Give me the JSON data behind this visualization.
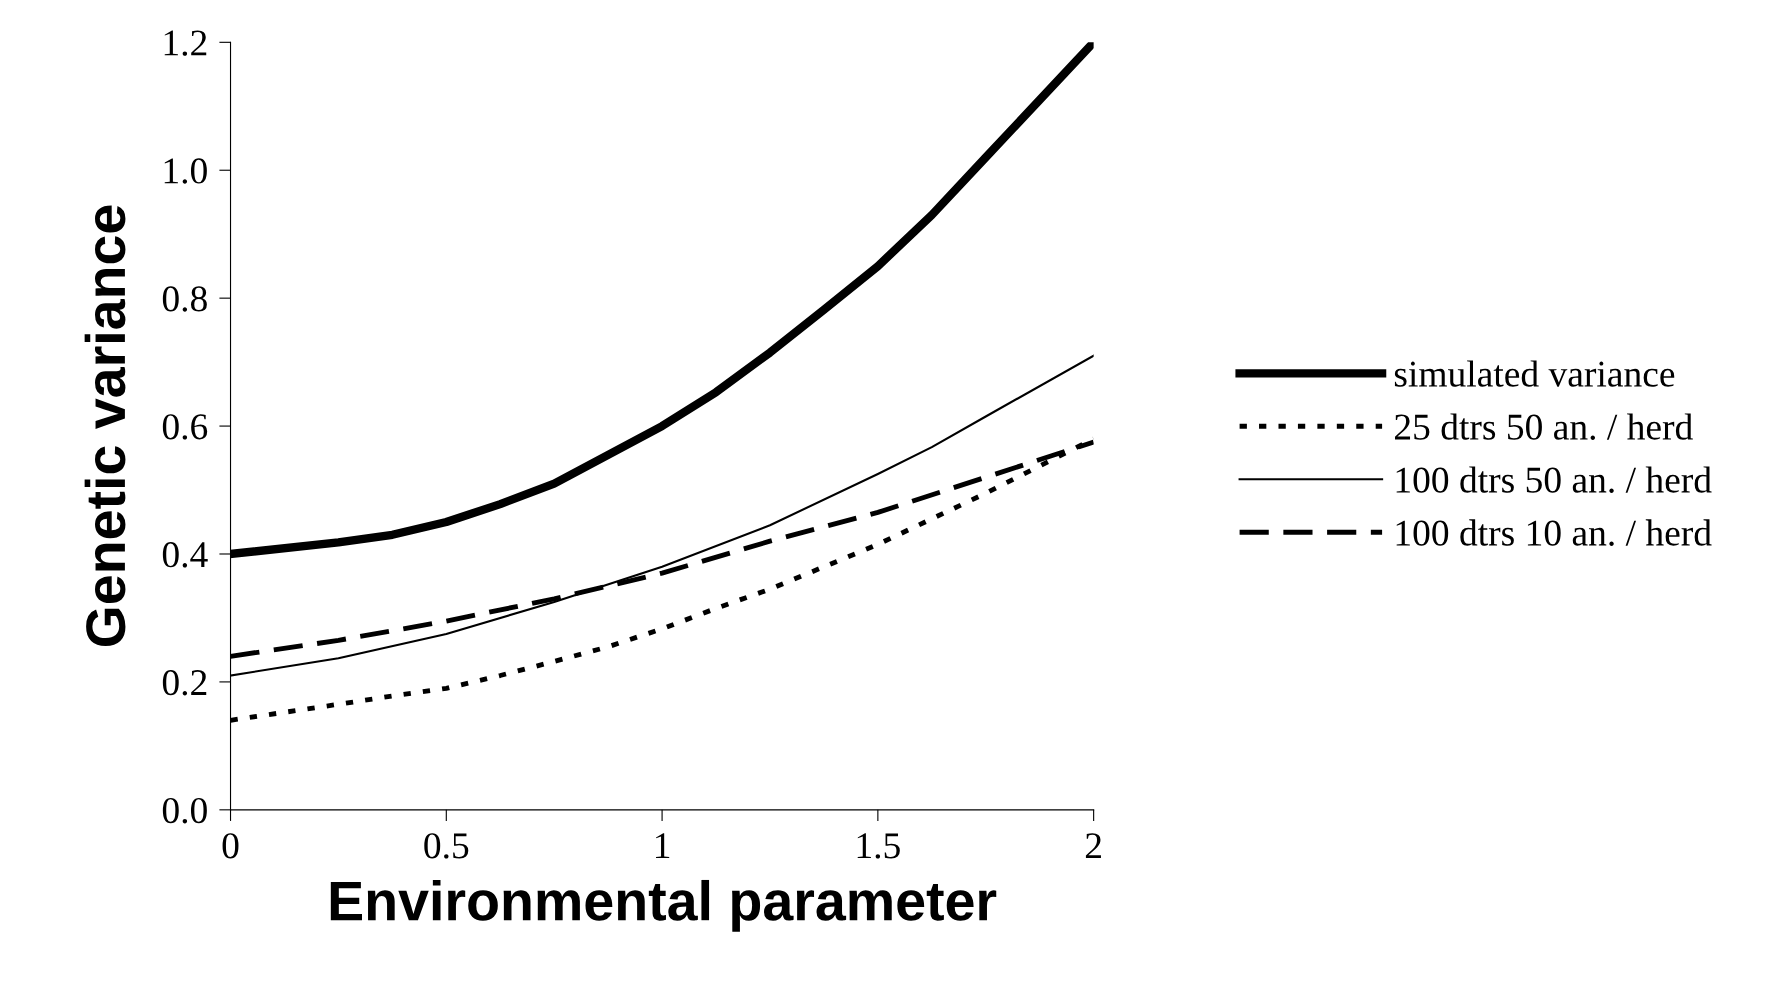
{
  "chart_data": {
    "type": "line",
    "xlabel": "Environmental parameter",
    "ylabel": "Genetic variance",
    "xlim": [
      0,
      2
    ],
    "xticks": [
      0,
      0.5,
      1,
      1.5,
      2
    ],
    "ylim": [
      0,
      1.2
    ],
    "yticks": [
      {
        "value": 0,
        "label": "0.0"
      },
      {
        "value": 0.2,
        "label": "0.2"
      },
      {
        "value": 0.4,
        "label": "0.4"
      },
      {
        "value": 0.6,
        "label": "0.6"
      },
      {
        "value": 0.8,
        "label": "0.8"
      },
      {
        "value": 1.0,
        "label": "1.0"
      },
      {
        "value": 1.2,
        "label": "1.2"
      }
    ],
    "grid": false,
    "legend": "right",
    "marker": "none",
    "series": [
      {
        "name": "simulated variance",
        "color": "#000000",
        "line_style": "solid",
        "x": [
          0,
          0.25,
          0.375,
          0.5,
          0.625,
          0.75,
          0.875,
          1,
          1.125,
          1.25,
          1.375,
          1.5,
          1.625,
          1.75,
          1.875,
          2
        ],
        "values": [
          0.4,
          0.418,
          0.43,
          0.45,
          0.478,
          0.51,
          0.555,
          0.6,
          0.653,
          0.715,
          0.782,
          0.85,
          0.93,
          1.02,
          1.11,
          1.2
        ]
      },
      {
        "name": "25 dtrs 50 an. / herd",
        "color": "#000000",
        "line_style": "dotted",
        "x": [
          0,
          0.25,
          0.375,
          0.5,
          0.625,
          0.75,
          0.875,
          1,
          1.125,
          1.25,
          1.5,
          1.625,
          1.75,
          2
        ],
        "values": [
          0.14,
          0.165,
          0.178,
          0.19,
          0.21,
          0.232,
          0.255,
          0.283,
          0.315,
          0.345,
          0.415,
          0.455,
          0.495,
          0.58
        ]
      },
      {
        "name": "100 dtrs 50 an. / herd",
        "color": "#000000",
        "line_style": "solid",
        "x": [
          0,
          0.25,
          0.5,
          0.75,
          1,
          1.25,
          1.5,
          1.625,
          1.75,
          2
        ],
        "values": [
          0.21,
          0.237,
          0.275,
          0.325,
          0.38,
          0.445,
          0.525,
          0.567,
          0.615,
          0.71
        ]
      },
      {
        "name": "100 dtrs 10 an. / herd",
        "color": "#000000",
        "line_style": "dashed",
        "x": [
          0,
          0.25,
          0.5,
          0.75,
          1,
          1.25,
          1.5,
          1.75,
          2
        ],
        "values": [
          0.24,
          0.265,
          0.295,
          0.33,
          0.37,
          0.42,
          0.465,
          0.52,
          0.575
        ]
      }
    ]
  }
}
